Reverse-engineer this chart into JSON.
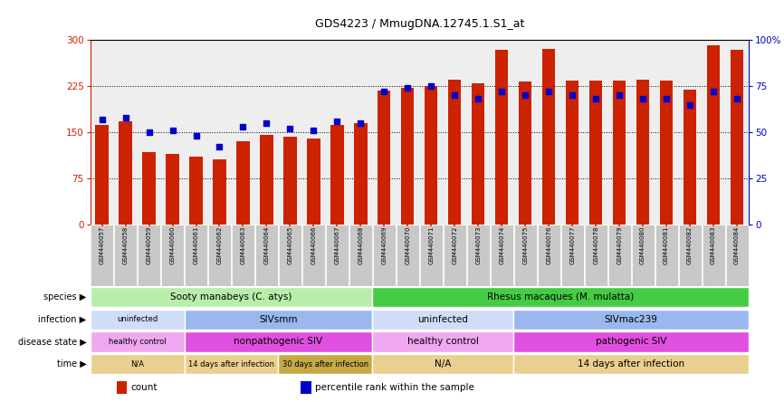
{
  "title": "GDS4223 / MmugDNA.12745.1.S1_at",
  "samples": [
    "GSM440057",
    "GSM440058",
    "GSM440059",
    "GSM440060",
    "GSM440061",
    "GSM440062",
    "GSM440063",
    "GSM440064",
    "GSM440065",
    "GSM440066",
    "GSM440067",
    "GSM440068",
    "GSM440069",
    "GSM440070",
    "GSM440071",
    "GSM440072",
    "GSM440073",
    "GSM440074",
    "GSM440075",
    "GSM440076",
    "GSM440077",
    "GSM440078",
    "GSM440079",
    "GSM440080",
    "GSM440081",
    "GSM440082",
    "GSM440083",
    "GSM440084"
  ],
  "counts": [
    162,
    168,
    118,
    115,
    110,
    105,
    135,
    145,
    142,
    140,
    162,
    165,
    218,
    222,
    226,
    235,
    230,
    285,
    233,
    286,
    234,
    234,
    234,
    235,
    234,
    220,
    292,
    285
  ],
  "percentile": [
    57,
    58,
    50,
    51,
    48,
    42,
    53,
    55,
    52,
    51,
    56,
    55,
    72,
    74,
    75,
    70,
    68,
    72,
    70,
    72,
    70,
    68,
    70,
    68,
    68,
    65,
    72,
    68
  ],
  "bar_color": "#cc2200",
  "dot_color": "#0000cc",
  "ymax": 300,
  "yticks_left": [
    0,
    75,
    150,
    225,
    300
  ],
  "ytick_labels_left": [
    "0",
    "75",
    "150",
    "225",
    "300"
  ],
  "ytick_labels_right": [
    "0",
    "25",
    "50",
    "75",
    "100%"
  ],
  "hlines": [
    75,
    150,
    225
  ],
  "species_blocks": [
    {
      "text": "Sooty manabeys (C. atys)",
      "start": 0,
      "end": 12,
      "color": "#b8eeaa"
    },
    {
      "text": "Rhesus macaques (M. mulatta)",
      "start": 12,
      "end": 28,
      "color": "#44cc44"
    }
  ],
  "infection_blocks": [
    {
      "text": "uninfected",
      "start": 0,
      "end": 4,
      "color": "#d0ddf8"
    },
    {
      "text": "SIVsmm",
      "start": 4,
      "end": 12,
      "color": "#99b8ee"
    },
    {
      "text": "uninfected",
      "start": 12,
      "end": 18,
      "color": "#d0ddf8"
    },
    {
      "text": "SIVmac239",
      "start": 18,
      "end": 28,
      "color": "#99b8ee"
    }
  ],
  "disease_blocks": [
    {
      "text": "healthy control",
      "start": 0,
      "end": 4,
      "color": "#f0a8f0"
    },
    {
      "text": "nonpathogenic SIV",
      "start": 4,
      "end": 12,
      "color": "#e050e0"
    },
    {
      "text": "healthy control",
      "start": 12,
      "end": 18,
      "color": "#f0a8f0"
    },
    {
      "text": "pathogenic SIV",
      "start": 18,
      "end": 28,
      "color": "#e050e0"
    }
  ],
  "time_blocks": [
    {
      "text": "N/A",
      "start": 0,
      "end": 4,
      "color": "#ead090"
    },
    {
      "text": "14 days after infection",
      "start": 4,
      "end": 8,
      "color": "#ead090"
    },
    {
      "text": "30 days after infection",
      "start": 8,
      "end": 12,
      "color": "#c8a845"
    },
    {
      "text": "N/A",
      "start": 12,
      "end": 18,
      "color": "#ead090"
    },
    {
      "text": "14 days after infection",
      "start": 18,
      "end": 28,
      "color": "#ead090"
    }
  ],
  "row_labels": [
    "species",
    "infection",
    "disease state",
    "time"
  ],
  "legend_labels": [
    "count",
    "percentile rank within the sample"
  ],
  "legend_colors": [
    "#cc2200",
    "#0000cc"
  ],
  "bg_color": "#ffffff",
  "axis_bg": "#eeeeee",
  "tick_bg": "#c8c8c8",
  "label_color_left": "#cc2200",
  "label_color_right": "#0000cc"
}
